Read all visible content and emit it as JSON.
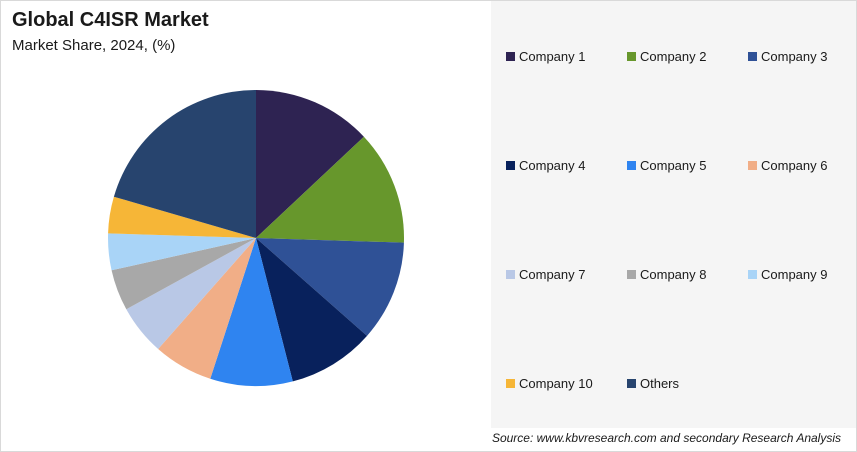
{
  "header": {
    "title": "Global C4ISR Market",
    "subtitle": "Market Share, 2024, (%)"
  },
  "source": "Source: www.kbvresearch.com and secondary Research Analysis",
  "chart_data": {
    "type": "pie",
    "title": "Global C4ISR Market",
    "subtitle": "Market Share, 2024, (%)",
    "legend_position": "right",
    "categories": [
      "Company 1",
      "Company 2",
      "Company 3",
      "Company 4",
      "Company 5",
      "Company 6",
      "Company 7",
      "Company 8",
      "Company 9",
      "Company 10",
      "Others"
    ],
    "values": [
      13.0,
      12.5,
      11.0,
      9.5,
      9.0,
      6.5,
      5.5,
      4.5,
      4.0,
      4.0,
      20.5
    ],
    "colors": [
      "#2e2352",
      "#67972c",
      "#2f5196",
      "#08215c",
      "#2f84f0",
      "#f1ae87",
      "#b9c8e6",
      "#a8a8a8",
      "#a9d4f7",
      "#f6b637",
      "#27446e"
    ]
  }
}
